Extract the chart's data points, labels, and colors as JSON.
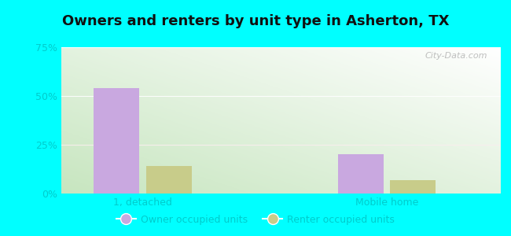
{
  "title": "Owners and renters by unit type in Asherton, TX",
  "categories": [
    "1, detached",
    "Mobile home"
  ],
  "owner_values": [
    54.0,
    20.0
  ],
  "renter_values": [
    14.0,
    7.0
  ],
  "owner_color": "#c9a8e0",
  "renter_color": "#c8cc8a",
  "ylim": [
    0,
    75
  ],
  "yticks": [
    0,
    25,
    50,
    75
  ],
  "ytick_labels": [
    "0%",
    "25%",
    "50%",
    "75%"
  ],
  "background_outer": "#00FFFF",
  "bar_width": 0.28,
  "group_positions": [
    0.7,
    2.2
  ],
  "xlim": [
    0.2,
    2.9
  ],
  "watermark": "City-Data.com",
  "legend_owner": "Owner occupied units",
  "legend_renter": "Renter occupied units",
  "title_fontsize": 13,
  "tick_fontsize": 9,
  "legend_fontsize": 9,
  "tick_color": "#00CCCC",
  "grid_color": "#e8e8e8"
}
